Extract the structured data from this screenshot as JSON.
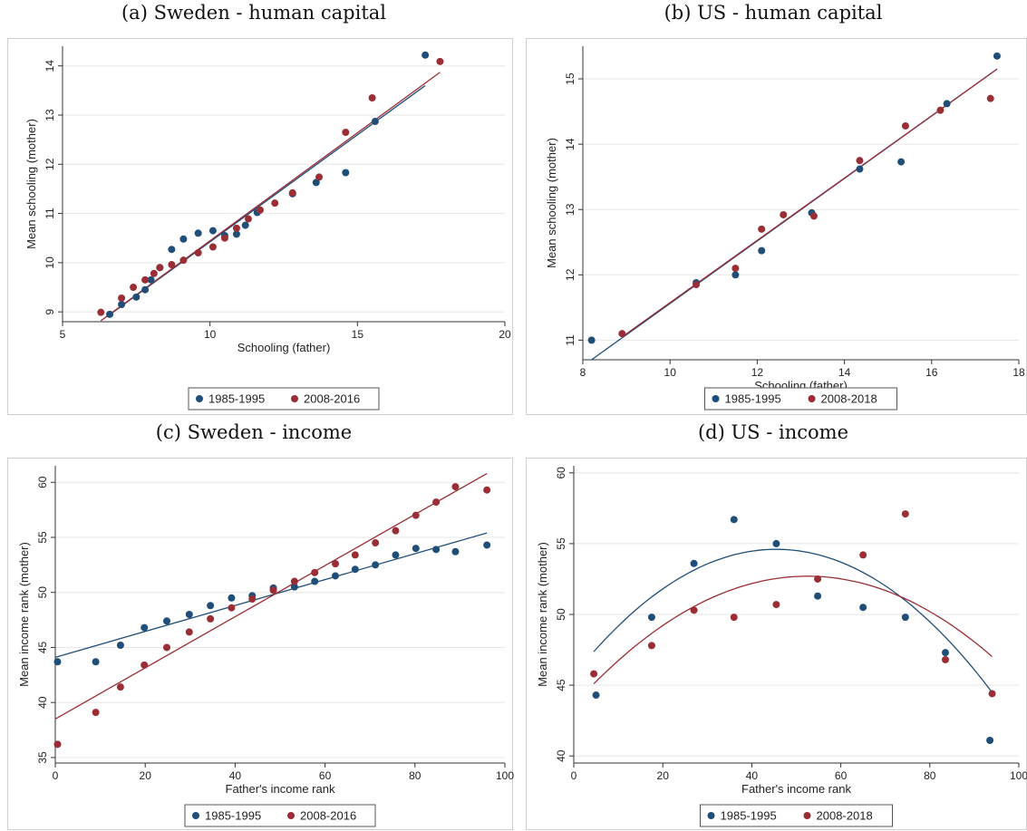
{
  "chart_data": [
    {
      "type": "scatter",
      "title": "(a) Sweden - human capital",
      "xlabel": "Schooling (father)",
      "ylabel": "Mean schooling (mother)",
      "xlim": [
        5,
        20
      ],
      "ylim": [
        8.8,
        14.4
      ],
      "xticks": [
        "5",
        "10",
        "15",
        "20"
      ],
      "yticks": [
        "9",
        "10",
        "11",
        "12",
        "13",
        "14"
      ],
      "ytick_values": [
        9,
        10,
        11,
        12,
        13,
        14
      ],
      "xtick_values": [
        5,
        10,
        15,
        20
      ],
      "grid": "horizontal",
      "legend": "bottom",
      "series": [
        {
          "name": "1985-1995",
          "color": "#1f4e79",
          "points": [
            [
              6.6,
              8.95
            ],
            [
              7.0,
              9.15
            ],
            [
              7.5,
              9.3
            ],
            [
              7.8,
              9.45
            ],
            [
              8.0,
              9.65
            ],
            [
              8.3,
              9.9
            ],
            [
              8.7,
              10.27
            ],
            [
              9.1,
              10.48
            ],
            [
              9.6,
              10.6
            ],
            [
              10.1,
              10.65
            ],
            [
              10.5,
              10.55
            ],
            [
              10.9,
              10.58
            ],
            [
              11.2,
              10.76
            ],
            [
              11.6,
              11.02
            ],
            [
              12.8,
              11.4
            ],
            [
              13.6,
              11.63
            ],
            [
              14.6,
              11.83
            ],
            [
              15.6,
              12.87
            ],
            [
              17.3,
              14.22
            ]
          ],
          "fit": [
            [
              6.5,
              8.9
            ],
            [
              17.3,
              13.6
            ]
          ]
        },
        {
          "name": "2008-2016",
          "color": "#9b2d35",
          "points": [
            [
              6.3,
              8.99
            ],
            [
              7.0,
              9.28
            ],
            [
              7.4,
              9.5
            ],
            [
              7.8,
              9.65
            ],
            [
              8.1,
              9.78
            ],
            [
              8.3,
              9.9
            ],
            [
              8.7,
              9.96
            ],
            [
              9.1,
              10.05
            ],
            [
              9.6,
              10.2
            ],
            [
              10.1,
              10.32
            ],
            [
              10.5,
              10.5
            ],
            [
              10.9,
              10.7
            ],
            [
              11.3,
              10.89
            ],
            [
              11.7,
              11.07
            ],
            [
              12.2,
              11.21
            ],
            [
              12.8,
              11.42
            ],
            [
              13.7,
              11.74
            ],
            [
              14.6,
              12.65
            ],
            [
              15.5,
              13.35
            ],
            [
              17.8,
              14.09
            ]
          ],
          "fit": [
            [
              6.3,
              8.82
            ],
            [
              17.8,
              13.87
            ]
          ]
        }
      ]
    },
    {
      "type": "scatter",
      "title": "(b) US - human capital",
      "xlabel": "Schooling (father)",
      "ylabel": "Mean schooling (mother)",
      "xlim": [
        8,
        18
      ],
      "ylim": [
        10.7,
        15.5
      ],
      "xticks": [
        "8",
        "10",
        "12",
        "14",
        "16",
        "18"
      ],
      "xtick_values": [
        8,
        10,
        12,
        14,
        16,
        18
      ],
      "yticks": [
        "11",
        "12",
        "13",
        "14",
        "15"
      ],
      "ytick_values": [
        11,
        12,
        13,
        14,
        15
      ],
      "grid": "horizontal",
      "legend": "bottom",
      "series": [
        {
          "name": "1985-1995",
          "color": "#1f4e79",
          "points": [
            [
              8.2,
              11.0
            ],
            [
              10.6,
              11.88
            ],
            [
              11.5,
              12.0
            ],
            [
              12.1,
              12.37
            ],
            [
              13.25,
              12.95
            ],
            [
              14.35,
              13.62
            ],
            [
              15.3,
              13.73
            ],
            [
              16.35,
              14.62
            ],
            [
              17.5,
              15.35
            ]
          ],
          "fit": [
            [
              8.2,
              10.7
            ],
            [
              17.5,
              15.15
            ]
          ]
        },
        {
          "name": "2008-2018",
          "color": "#9b2d35",
          "points": [
            [
              8.9,
              11.1
            ],
            [
              10.6,
              11.85
            ],
            [
              11.5,
              12.1
            ],
            [
              12.1,
              12.7
            ],
            [
              12.6,
              12.92
            ],
            [
              13.3,
              12.9
            ],
            [
              14.35,
              13.75
            ],
            [
              15.4,
              14.28
            ],
            [
              16.2,
              14.52
            ],
            [
              17.35,
              14.7
            ]
          ],
          "fit": [
            [
              8.9,
              11.05
            ],
            [
              17.5,
              15.15
            ]
          ]
        }
      ]
    },
    {
      "type": "scatter",
      "title": "(c) Sweden - income",
      "xlabel": "Father's income rank",
      "ylabel": "Mean income rank (mother)",
      "xlim": [
        0,
        100
      ],
      "ylim": [
        34.5,
        61.5
      ],
      "xticks": [
        "0",
        "20",
        "40",
        "60",
        "80",
        "100"
      ],
      "xtick_values": [
        0,
        20,
        40,
        60,
        80,
        100
      ],
      "yticks": [
        "35",
        "40",
        "45",
        "50",
        "55",
        "60"
      ],
      "ytick_values": [
        35,
        40,
        45,
        50,
        55,
        60
      ],
      "grid": "horizontal",
      "legend": "bottom",
      "series": [
        {
          "name": "1985-1995",
          "color": "#1f4e79",
          "points": [
            [
              0.5,
              43.7
            ],
            [
              9,
              43.7
            ],
            [
              14.5,
              45.2
            ],
            [
              19.8,
              46.8
            ],
            [
              24.8,
              47.4
            ],
            [
              29.8,
              48.0
            ],
            [
              34.5,
              48.8
            ],
            [
              39.2,
              49.5
            ],
            [
              43.8,
              49.7
            ],
            [
              48.5,
              50.4
            ],
            [
              53.2,
              50.5
            ],
            [
              57.7,
              51.0
            ],
            [
              62.3,
              51.5
            ],
            [
              66.7,
              52.1
            ],
            [
              71.2,
              52.5
            ],
            [
              75.7,
              53.4
            ],
            [
              80.2,
              54.0
            ],
            [
              84.7,
              53.9
            ],
            [
              89.0,
              53.7
            ],
            [
              96.0,
              54.3
            ]
          ],
          "fit": [
            [
              0,
              44.1
            ],
            [
              96,
              55.4
            ]
          ]
        },
        {
          "name": "2008-2016",
          "color": "#9b2d35",
          "points": [
            [
              0.5,
              36.2
            ],
            [
              9,
              39.1
            ],
            [
              14.5,
              41.4
            ],
            [
              19.8,
              43.4
            ],
            [
              24.8,
              45.0
            ],
            [
              29.8,
              46.4
            ],
            [
              34.5,
              47.6
            ],
            [
              39.2,
              48.6
            ],
            [
              43.8,
              49.4
            ],
            [
              48.5,
              50.2
            ],
            [
              53.2,
              51.0
            ],
            [
              57.7,
              51.8
            ],
            [
              62.3,
              52.6
            ],
            [
              66.7,
              53.4
            ],
            [
              71.2,
              54.5
            ],
            [
              75.7,
              55.6
            ],
            [
              80.2,
              57.0
            ],
            [
              84.7,
              58.2
            ],
            [
              89.0,
              59.6
            ],
            [
              96.0,
              59.3
            ]
          ],
          "fit": [
            [
              0,
              38.5
            ],
            [
              96,
              60.8
            ]
          ]
        }
      ]
    },
    {
      "type": "scatter",
      "title": "(d) US - income",
      "xlabel": "Father's income rank",
      "ylabel": "Mean income rank (mother)",
      "xlim": [
        0,
        100
      ],
      "ylim": [
        39.5,
        60.5
      ],
      "xticks": [
        "0",
        "20",
        "40",
        "60",
        "80",
        "100"
      ],
      "xtick_values": [
        0,
        20,
        40,
        60,
        80,
        100
      ],
      "yticks": [
        "40",
        "45",
        "50",
        "55",
        "60"
      ],
      "ytick_values": [
        40,
        45,
        50,
        55,
        60
      ],
      "grid": "horizontal",
      "legend": "bottom",
      "series": [
        {
          "name": "1985-1995",
          "color": "#1f4e79",
          "points": [
            [
              5,
              44.3
            ],
            [
              17.5,
              49.8
            ],
            [
              27,
              53.6
            ],
            [
              36,
              56.7
            ],
            [
              45.5,
              55.0
            ],
            [
              54.8,
              51.3
            ],
            [
              65,
              50.5
            ],
            [
              74.5,
              49.8
            ],
            [
              83.5,
              47.3
            ],
            [
              93.5,
              41.1
            ]
          ],
          "curve": {
            "a": -0.0043,
            "h": 45.5,
            "k": 54.6,
            "x0": 4.5,
            "x1": 94
          }
        },
        {
          "name": "2008-2018",
          "color": "#9b2d35",
          "points": [
            [
              4.5,
              45.8
            ],
            [
              17.5,
              47.8
            ],
            [
              27,
              50.3
            ],
            [
              36,
              49.8
            ],
            [
              45.5,
              50.7
            ],
            [
              54.8,
              52.5
            ],
            [
              65,
              54.2
            ],
            [
              74.5,
              57.1
            ],
            [
              83.5,
              46.8
            ],
            [
              94,
              44.4
            ]
          ],
          "curve": {
            "a": -0.0033,
            "h": 52.5,
            "k": 52.7,
            "x0": 4.5,
            "x1": 94
          }
        }
      ]
    }
  ]
}
